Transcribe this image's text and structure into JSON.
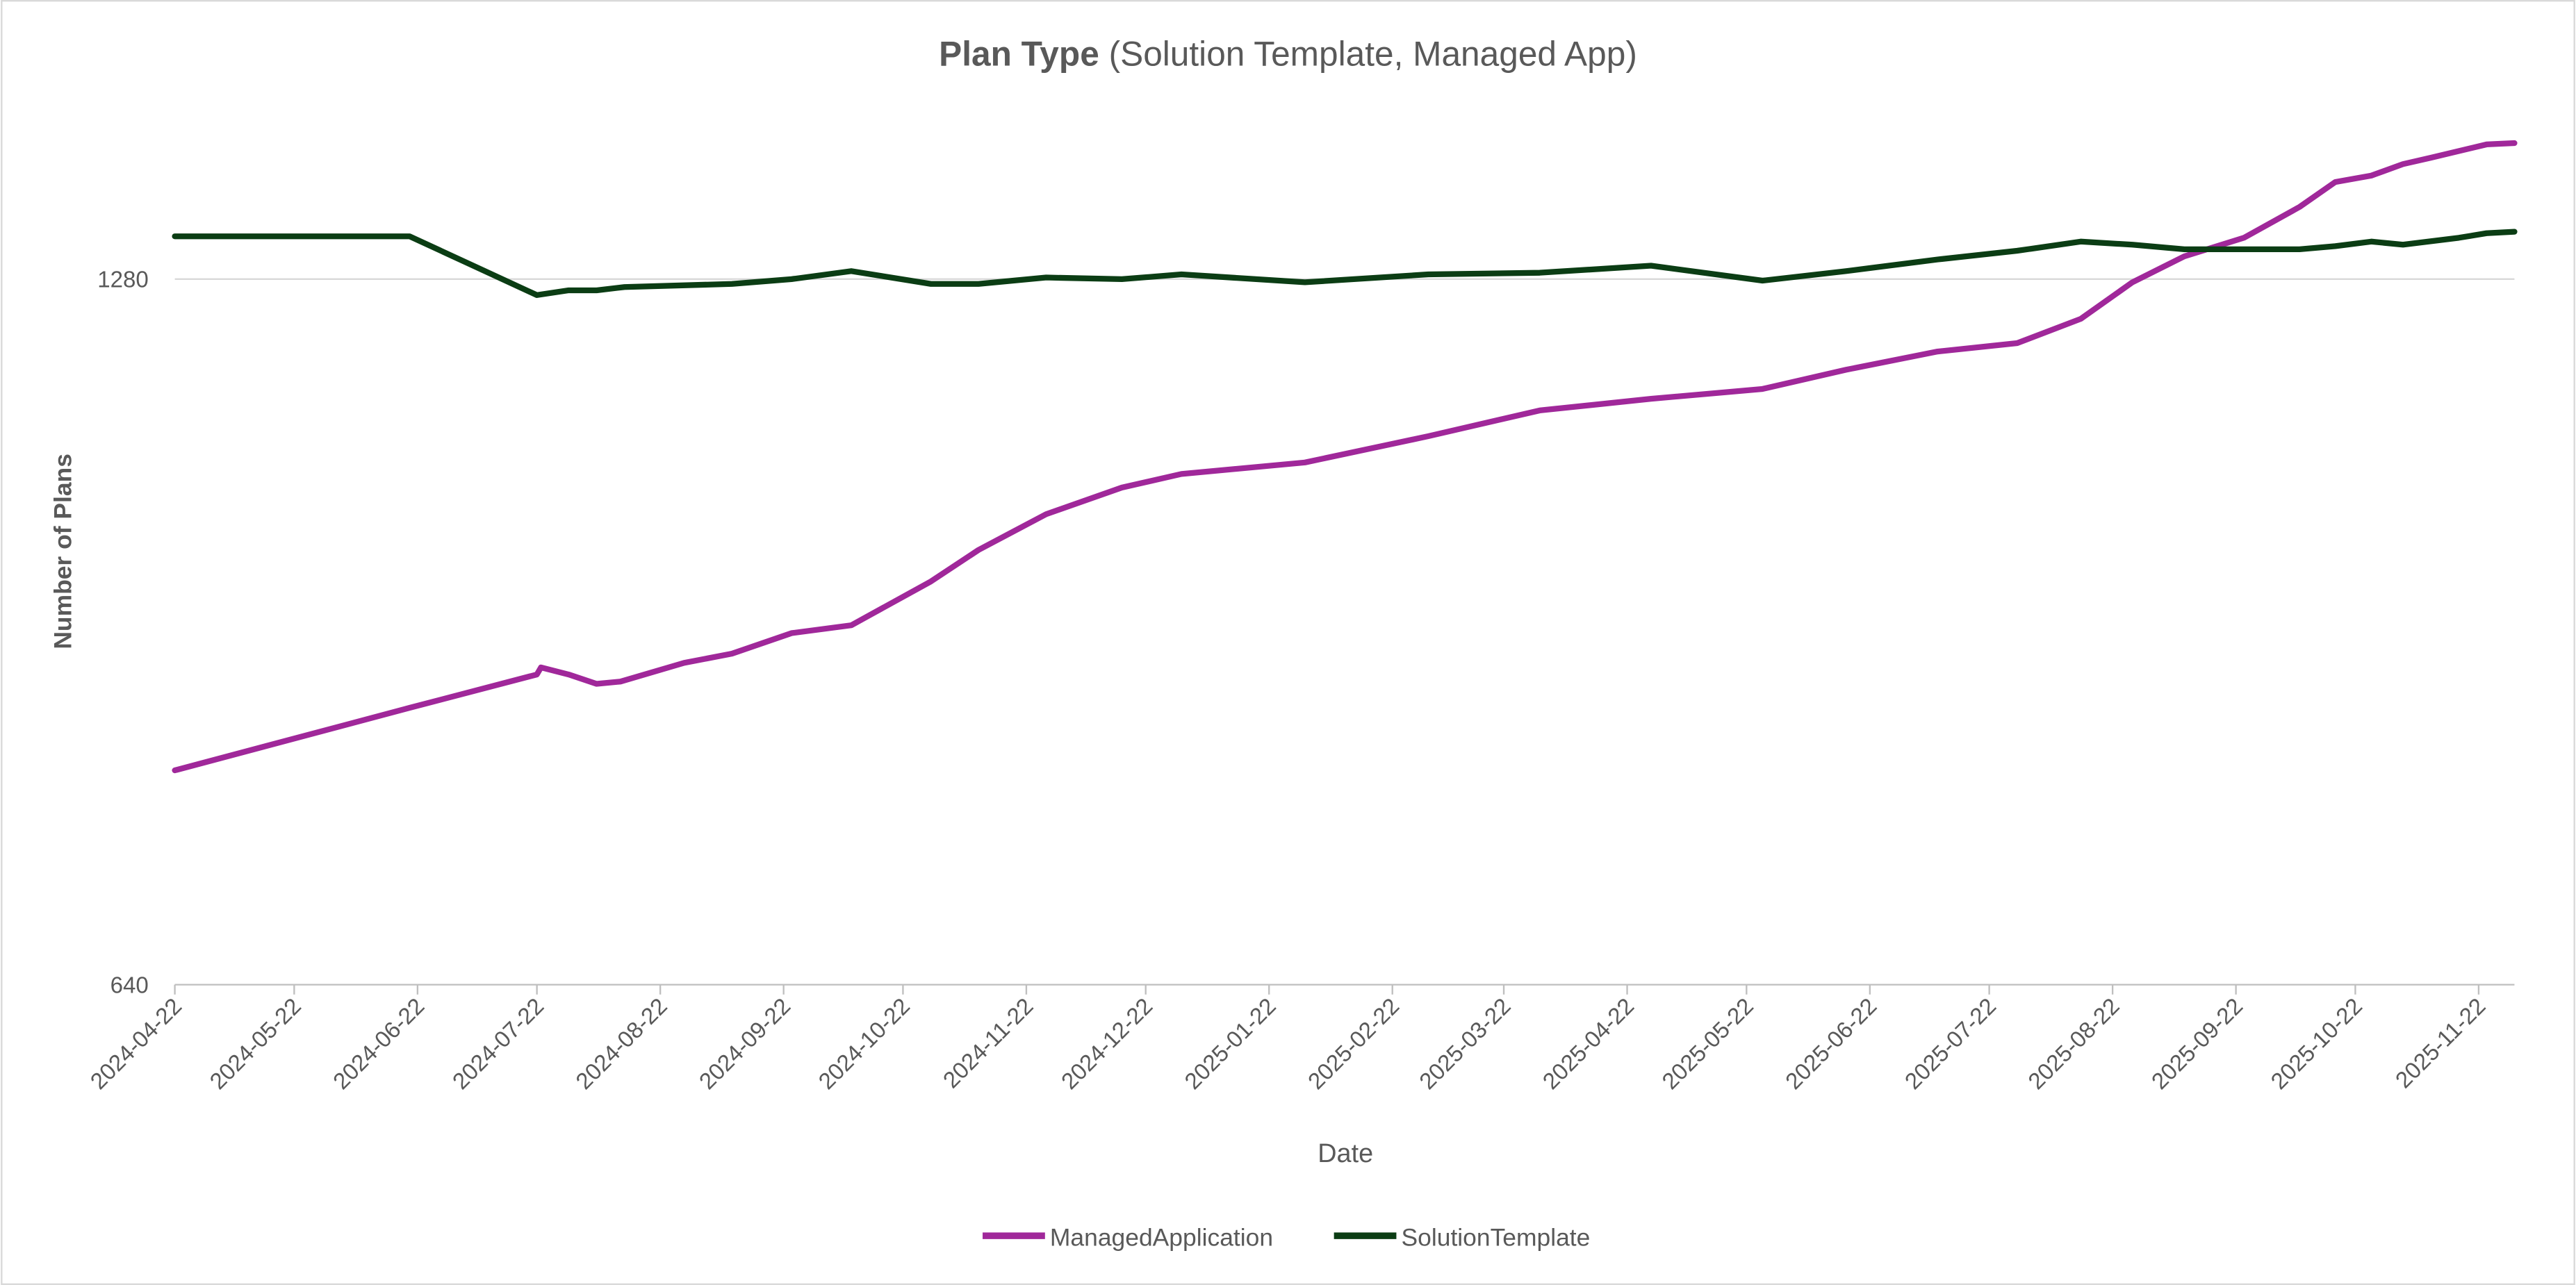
{
  "chart_data": {
    "type": "line",
    "title": "Plan Type",
    "subtitle": "(Solution Template, Managed App)",
    "xlabel": "Date",
    "ylabel": "Number of Plans",
    "yscale": "log2",
    "ylim": [
      640,
      1480
    ],
    "yticks": [
      "640",
      "1280"
    ],
    "ytick_values": [
      640,
      1280
    ],
    "xlim": [
      "2024-04-22",
      "2025-12-01"
    ],
    "xticks": [
      "2024-04-22",
      "2024-05-22",
      "2024-06-22",
      "2024-07-22",
      "2024-08-22",
      "2024-09-22",
      "2024-10-22",
      "2024-11-22",
      "2024-12-22",
      "2025-01-22",
      "2025-02-22",
      "2025-03-22",
      "2025-04-22",
      "2025-05-22",
      "2025-06-22",
      "2025-07-22",
      "2025-08-22",
      "2025-09-22",
      "2025-10-22",
      "2025-11-22"
    ],
    "grid": "horizontal",
    "legend": "bottom",
    "series": [
      {
        "name": "ManagedApplication",
        "color": "#A0289A",
        "points": [
          [
            "2024-04-22",
            790
          ],
          [
            "2024-06-20",
            840
          ],
          [
            "2024-07-22",
            868
          ],
          [
            "2024-07-23",
            874
          ],
          [
            "2024-07-30",
            868
          ],
          [
            "2024-08-06",
            860
          ],
          [
            "2024-08-12",
            862
          ],
          [
            "2024-08-28",
            878
          ],
          [
            "2024-09-09",
            886
          ],
          [
            "2024-09-24",
            904
          ],
          [
            "2024-10-09",
            911
          ],
          [
            "2024-10-29",
            951
          ],
          [
            "2024-11-10",
            981
          ],
          [
            "2024-11-27",
            1016
          ],
          [
            "2024-12-16",
            1043
          ],
          [
            "2024-12-31",
            1057
          ],
          [
            "2025-01-31",
            1069
          ],
          [
            "2025-03-03",
            1097
          ],
          [
            "2025-03-31",
            1125
          ],
          [
            "2025-04-28",
            1138
          ],
          [
            "2025-05-26",
            1149
          ],
          [
            "2025-06-16",
            1171
          ],
          [
            "2025-07-09",
            1192
          ],
          [
            "2025-07-29",
            1202
          ],
          [
            "2025-08-14",
            1231
          ],
          [
            "2025-08-27",
            1276
          ],
          [
            "2025-09-09",
            1309
          ],
          [
            "2025-09-24",
            1333
          ],
          [
            "2025-10-08",
            1374
          ],
          [
            "2025-10-17",
            1408
          ],
          [
            "2025-10-26",
            1417
          ],
          [
            "2025-11-03",
            1433
          ],
          [
            "2025-11-10",
            1442
          ],
          [
            "2025-11-24",
            1461
          ],
          [
            "2025-12-01",
            1463
          ]
        ]
      },
      {
        "name": "SolutionTemplate",
        "color": "#0B3D14",
        "points": [
          [
            "2024-04-22",
            1335
          ],
          [
            "2024-06-20",
            1335
          ],
          [
            "2024-07-22",
            1260
          ],
          [
            "2024-07-30",
            1266
          ],
          [
            "2024-08-06",
            1266
          ],
          [
            "2024-08-13",
            1270
          ],
          [
            "2024-09-09",
            1274
          ],
          [
            "2024-09-24",
            1280
          ],
          [
            "2024-10-09",
            1290
          ],
          [
            "2024-10-29",
            1274
          ],
          [
            "2024-11-10",
            1274
          ],
          [
            "2024-11-27",
            1282
          ],
          [
            "2024-12-16",
            1280
          ],
          [
            "2024-12-31",
            1286
          ],
          [
            "2025-01-31",
            1276
          ],
          [
            "2025-03-03",
            1286
          ],
          [
            "2025-03-31",
            1288
          ],
          [
            "2025-04-28",
            1297
          ],
          [
            "2025-05-26",
            1278
          ],
          [
            "2025-06-16",
            1290
          ],
          [
            "2025-07-09",
            1305
          ],
          [
            "2025-07-29",
            1316
          ],
          [
            "2025-08-14",
            1328
          ],
          [
            "2025-08-27",
            1324
          ],
          [
            "2025-09-09",
            1318
          ],
          [
            "2025-09-24",
            1318
          ],
          [
            "2025-10-08",
            1318
          ],
          [
            "2025-10-17",
            1322
          ],
          [
            "2025-10-26",
            1328
          ],
          [
            "2025-11-03",
            1324
          ],
          [
            "2025-11-17",
            1333
          ],
          [
            "2025-11-24",
            1339
          ],
          [
            "2025-12-01",
            1341
          ]
        ]
      }
    ]
  }
}
